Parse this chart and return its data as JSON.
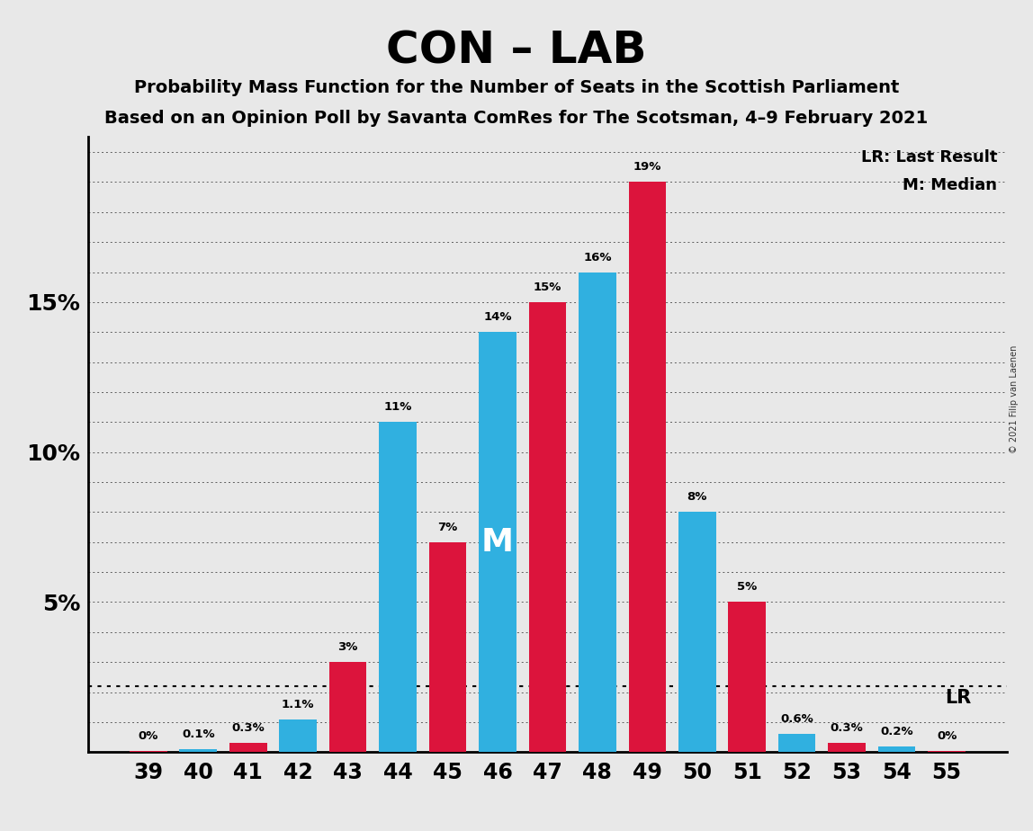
{
  "title": "CON – LAB",
  "subtitle1": "Probability Mass Function for the Number of Seats in the Scottish Parliament",
  "subtitle2": "Based on an Opinion Poll by Savanta ComRes for The Scotsman, 4–9 February 2021",
  "copyright": "© 2021 Filip van Laenen",
  "seats": [
    39,
    40,
    41,
    42,
    43,
    44,
    45,
    46,
    47,
    48,
    49,
    50,
    51,
    52,
    53,
    54,
    55
  ],
  "values": [
    0.0005,
    0.001,
    0.003,
    0.011,
    0.03,
    0.11,
    0.07,
    0.14,
    0.15,
    0.16,
    0.19,
    0.08,
    0.05,
    0.006,
    0.003,
    0.002,
    0.0005
  ],
  "colors": [
    "#DC143C",
    "#30B0E0",
    "#DC143C",
    "#30B0E0",
    "#DC143C",
    "#30B0E0",
    "#DC143C",
    "#30B0E0",
    "#DC143C",
    "#30B0E0",
    "#DC143C",
    "#30B0E0",
    "#DC143C",
    "#30B0E0",
    "#DC143C",
    "#30B0E0",
    "#DC143C"
  ],
  "labels": [
    "0%",
    "0.1%",
    "0.3%",
    "1.1%",
    "3%",
    "11%",
    "7%",
    "14%",
    "15%",
    "16%",
    "19%",
    "8%",
    "5%",
    "0.6%",
    "0.3%",
    "0.2%",
    "0%"
  ],
  "median_idx": 7,
  "lr_value": 0.022,
  "background_color": "#E8E8E8",
  "ylim": [
    0,
    0.205
  ],
  "yticks": [
    0.05,
    0.1,
    0.15
  ],
  "ytick_labels": [
    "5%",
    "10%",
    "15%"
  ],
  "bar_width": 0.75,
  "blue_color": "#30B0E0",
  "red_color": "#DC143C"
}
